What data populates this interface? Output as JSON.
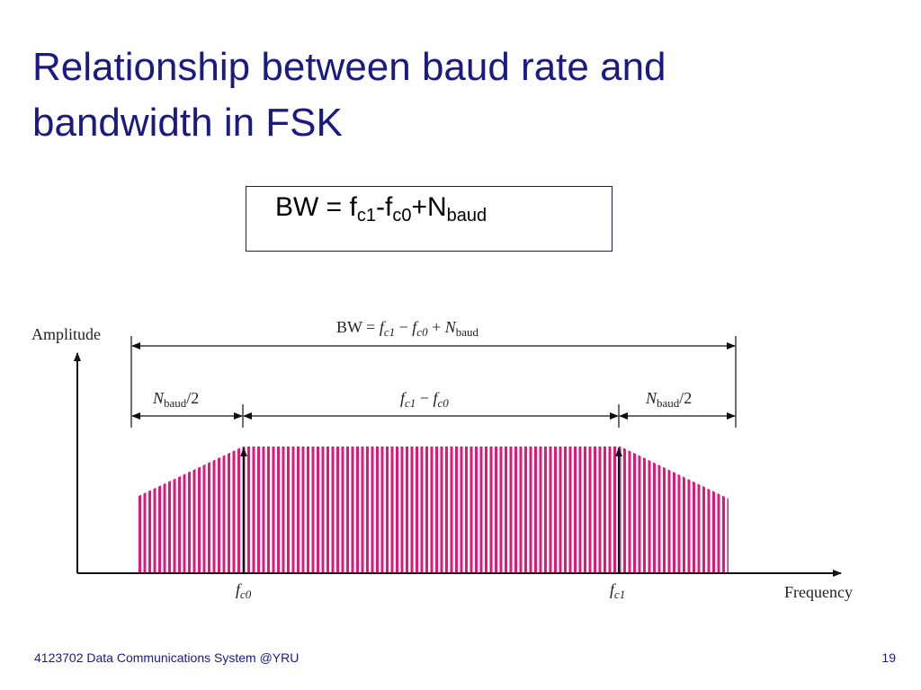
{
  "title_lines": [
    "Relationship between baud rate and",
    "bandwidth in FSK"
  ],
  "formula": [
    "BW = f",
    "c1",
    "-f",
    "c0",
    "+N",
    "baud"
  ],
  "diagram": {
    "y_axis_label": "Amplitude",
    "x_axis_label": "Frequency",
    "bw_label": [
      "BW = ",
      "f",
      "c1",
      " − ",
      "f",
      "c0",
      " + ",
      "N",
      "baud"
    ],
    "left_label": [
      "N",
      "baud",
      "/2"
    ],
    "middle_label": [
      "f",
      "c1",
      " − ",
      "f",
      "c0"
    ],
    "right_label": [
      "N",
      "baud",
      "/2"
    ],
    "fc0_label": [
      "f",
      "c0"
    ],
    "fc1_label": [
      "f",
      "c1"
    ]
  },
  "footer": {
    "text": "4123702 Data Communications System @YRU",
    "page": 19
  }
}
